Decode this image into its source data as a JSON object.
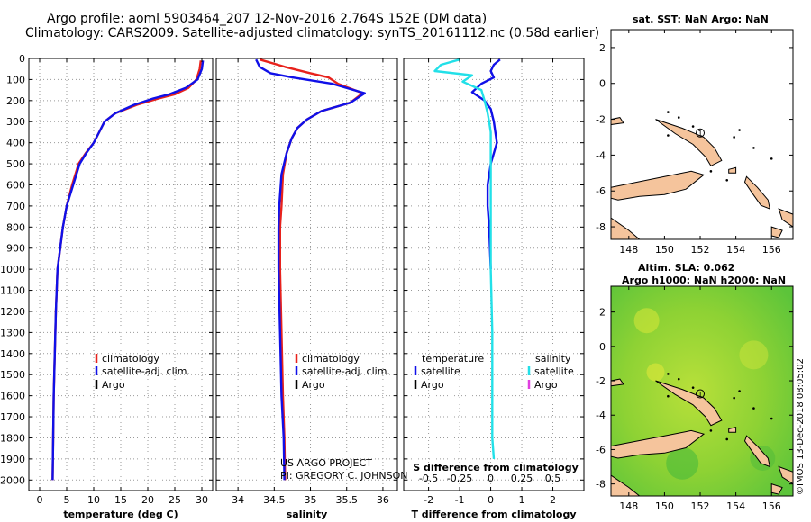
{
  "titles": {
    "line1": "Argo profile: aoml 5903464_207 12-Nov-2016 2.764S 152E (DM data)",
    "line2": "Climatology: CARS2009. Satellite-adjusted climatology: synTS_20161112.nc (0.58d earlier)"
  },
  "colors": {
    "climatology": "#e8221c",
    "satellite": "#1010e8",
    "argo": "#000000",
    "argo_salinity": "#e040e0",
    "satellite_diff_t": "#1010e8",
    "satellite_diff_s": "#22e0e8",
    "land": "#f5c49c",
    "sla_field": "#7ccd2e"
  },
  "chart_data": [
    {
      "type": "line",
      "id": "temperature",
      "xlabel": "temperature (deg C)",
      "xlim": [
        -2,
        32
      ],
      "ylim": [
        0,
        2050
      ],
      "y_inverted": true,
      "xticks": [
        "0",
        "5",
        "10",
        "15",
        "20",
        "25",
        "30"
      ],
      "xtick_values": [
        0,
        5,
        10,
        15,
        20,
        25,
        30
      ],
      "yticks": [
        "0",
        "100",
        "200",
        "300",
        "400",
        "500",
        "600",
        "700",
        "800",
        "900",
        "1000",
        "1100",
        "1200",
        "1300",
        "1400",
        "1500",
        "1600",
        "1700",
        "1800",
        "1900",
        "2000"
      ],
      "ytick_values": [
        0,
        100,
        200,
        300,
        400,
        500,
        600,
        700,
        800,
        900,
        1000,
        1100,
        1200,
        1300,
        1400,
        1500,
        1600,
        1700,
        1800,
        1900,
        2000
      ],
      "grid": true,
      "legend": [
        "climatology",
        "satellite-adj. clim.",
        "Argo"
      ],
      "series": [
        {
          "name": "climatology",
          "x": [
            29.8,
            29.6,
            29.0,
            27.5,
            25.0,
            22.0,
            18.0,
            14.0,
            12.0,
            11.0,
            10.0,
            8.5,
            7.2,
            6.0,
            5.0,
            4.3,
            3.8,
            3.3,
            3.0,
            2.8,
            2.6,
            2.4
          ],
          "y": [
            10,
            50,
            100,
            140,
            170,
            190,
            220,
            260,
            300,
            350,
            400,
            450,
            500,
            600,
            700,
            800,
            900,
            1000,
            1200,
            1400,
            1600,
            2000
          ]
        },
        {
          "name": "satellite-adj. clim.",
          "x": [
            30.2,
            30.0,
            29.2,
            27.0,
            24.0,
            21.0,
            17.5,
            14.0,
            12.0,
            11.0,
            10.0,
            8.6,
            7.4,
            6.2,
            5.0,
            4.3,
            3.8,
            3.3,
            3.0,
            2.8,
            2.6,
            2.4
          ],
          "y": [
            10,
            50,
            100,
            140,
            170,
            190,
            220,
            260,
            300,
            350,
            400,
            450,
            500,
            600,
            700,
            800,
            900,
            1000,
            1200,
            1400,
            1600,
            2000
          ]
        }
      ]
    },
    {
      "type": "line",
      "id": "salinity",
      "xlabel": "salinity",
      "xlim": [
        33.7,
        36.2
      ],
      "ylim": [
        0,
        2050
      ],
      "y_inverted": true,
      "xticks": [
        "34",
        "34.5",
        "35",
        "35.5",
        "36"
      ],
      "xtick_values": [
        34,
        34.5,
        35,
        35.5,
        36
      ],
      "grid": true,
      "legend": [
        "climatology",
        "satellite-adj. clim.",
        "Argo"
      ],
      "series": [
        {
          "name": "climatology",
          "x": [
            34.3,
            34.65,
            35.0,
            35.25,
            35.38,
            35.72,
            35.55,
            35.15,
            34.95,
            34.82,
            34.74,
            34.67,
            34.62,
            34.6,
            34.58,
            34.58,
            34.6,
            34.62,
            34.64,
            34.65
          ],
          "y": [
            5,
            40,
            70,
            90,
            120,
            165,
            210,
            250,
            290,
            330,
            380,
            450,
            550,
            700,
            800,
            1000,
            1300,
            1600,
            1800,
            2000
          ]
        },
        {
          "name": "satellite-adj. clim.",
          "x": [
            34.25,
            34.3,
            34.45,
            34.75,
            35.3,
            35.75,
            35.55,
            35.15,
            34.95,
            34.82,
            34.74,
            34.67,
            34.6,
            34.57,
            34.56,
            34.56,
            34.58,
            34.6,
            34.63,
            34.64
          ],
          "y": [
            5,
            40,
            70,
            90,
            120,
            165,
            210,
            250,
            290,
            330,
            380,
            450,
            550,
            700,
            800,
            1000,
            1300,
            1600,
            1800,
            2000
          ]
        }
      ]
    },
    {
      "type": "line",
      "id": "difference",
      "xlabel": "T difference from climatology",
      "xlabel_top": "S difference from climatology",
      "xlim": [
        -2.8,
        3.0
      ],
      "ylim": [
        0,
        2050
      ],
      "y_inverted": true,
      "xticks": [
        "-2",
        "-1",
        "0",
        "1",
        "2"
      ],
      "xtick_values": [
        -2,
        -1,
        0,
        1,
        2
      ],
      "xticks_top": [
        "-0.5",
        "-0.25",
        "0",
        "0.25",
        "0.5"
      ],
      "xtick_top_values": [
        -2,
        -1,
        0,
        1,
        2
      ],
      "grid": true,
      "legend_left_title": "temperature",
      "legend_right_title": "salinity",
      "legend_left": [
        "satellite",
        "Argo"
      ],
      "legend_right": [
        "satellite",
        "Argo"
      ],
      "series": [
        {
          "name": "temperature satellite",
          "x": [
            0.3,
            0.1,
            0.0,
            0.1,
            -0.3,
            -0.6,
            -0.2,
            0.0,
            0.1,
            0.15,
            0.2,
            0.1,
            0.0,
            -0.1,
            -0.1,
            -0.05,
            0.0
          ],
          "y": [
            5,
            30,
            60,
            90,
            120,
            160,
            200,
            240,
            300,
            350,
            400,
            450,
            500,
            600,
            700,
            800,
            1000
          ]
        },
        {
          "name": "salinity satellite",
          "x": [
            -1.0,
            -1.6,
            -1.8,
            -0.6,
            -0.9,
            -0.3,
            -0.2,
            -0.1,
            -0.05,
            0.0,
            0.0,
            0.0,
            0.0,
            0.0,
            0.05,
            0.05,
            0.05,
            0.1
          ],
          "y": [
            5,
            30,
            60,
            80,
            110,
            150,
            200,
            260,
            300,
            350,
            400,
            500,
            700,
            1000,
            1300,
            1600,
            1800,
            1900
          ]
        }
      ]
    }
  ],
  "labels": {
    "legend_climatology": "climatology",
    "legend_satellite": "satellite-adj. clim.",
    "legend_argo": "Argo",
    "diff_temperature": "temperature",
    "diff_salinity": "salinity",
    "diff_satellite": "satellite",
    "diff_argo": "Argo",
    "project_line1": "US ARGO PROJECT",
    "project_line2": "PI: GREGORY C. JOHNSON"
  },
  "map_sst": {
    "title": "sat. SST: NaN Argo: NaN",
    "xticks": [
      "148",
      "150",
      "152",
      "154",
      "156"
    ],
    "xtick_values": [
      148,
      150,
      152,
      154,
      156
    ],
    "yticks": [
      "2",
      "0",
      "-2",
      "-4",
      "-6",
      "-8"
    ],
    "ytick_values": [
      2,
      0,
      -2,
      -4,
      -6,
      -8
    ],
    "xlim": [
      147,
      157.2
    ],
    "ylim": [
      -8.7,
      3
    ],
    "marker_label": "1",
    "marker_lon": 152.0,
    "marker_lat": -2.76
  },
  "map_sla": {
    "title1": "Altim. SLA: 0.062",
    "title2": "Argo h1000: NaN h2000: NaN",
    "xticks": [
      "148",
      "150",
      "152",
      "154",
      "156"
    ],
    "xtick_values": [
      148,
      150,
      152,
      154,
      156
    ],
    "yticks": [
      "2",
      "0",
      "-2",
      "-4",
      "-6",
      "-8"
    ],
    "ytick_values": [
      2,
      0,
      -2,
      -4,
      -6,
      -8
    ],
    "xlim": [
      147,
      157.2
    ],
    "ylim": [
      -8.7,
      3.5
    ],
    "marker_label": "1",
    "marker_lon": 152.0,
    "marker_lat": -2.76
  },
  "credit": "©IMOS 13-Dec-2018 08:05:02"
}
